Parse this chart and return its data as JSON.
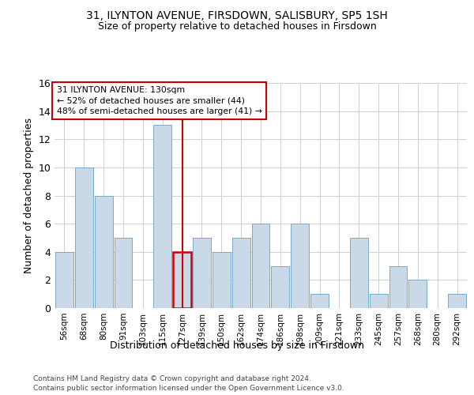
{
  "title1": "31, ILYNTON AVENUE, FIRSDOWN, SALISBURY, SP5 1SH",
  "title2": "Size of property relative to detached houses in Firsdown",
  "xlabel": "Distribution of detached houses by size in Firsdown",
  "ylabel": "Number of detached properties",
  "categories": [
    "56sqm",
    "68sqm",
    "80sqm",
    "91sqm",
    "103sqm",
    "115sqm",
    "127sqm",
    "139sqm",
    "150sqm",
    "162sqm",
    "174sqm",
    "186sqm",
    "198sqm",
    "209sqm",
    "221sqm",
    "233sqm",
    "245sqm",
    "257sqm",
    "268sqm",
    "280sqm",
    "292sqm"
  ],
  "values": [
    4,
    10,
    8,
    5,
    0,
    13,
    4,
    5,
    4,
    5,
    6,
    3,
    6,
    1,
    0,
    5,
    1,
    3,
    2,
    0,
    1
  ],
  "highlight_index": 6,
  "bar_color": "#c9d9e8",
  "bar_edge_color": "#7aaac8",
  "highlight_edge_color": "#cc0000",
  "annotation_box_color": "#cc0000",
  "annotation_text": "31 ILYNTON AVENUE: 130sqm\n← 52% of detached houses are smaller (44)\n48% of semi-detached houses are larger (41) →",
  "footer1": "Contains HM Land Registry data © Crown copyright and database right 2024.",
  "footer2": "Contains public sector information licensed under the Open Government Licence v3.0.",
  "ylim": [
    0,
    16
  ],
  "yticks": [
    0,
    2,
    4,
    6,
    8,
    10,
    12,
    14,
    16
  ],
  "background_color": "#ffffff",
  "grid_color": "#d0d0d0"
}
